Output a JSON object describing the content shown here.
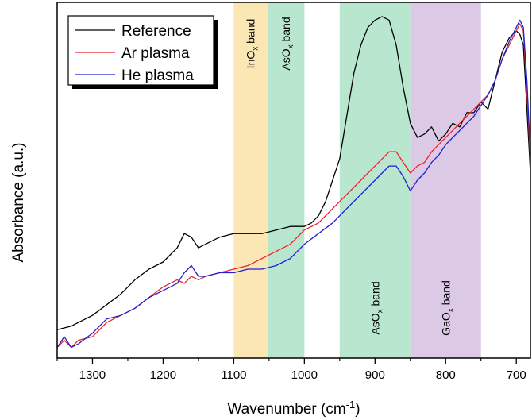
{
  "chart_data": {
    "type": "line",
    "xlabel": "Wavenumber (cm",
    "xlabel_sup": "-1",
    "xlabel_close": ")",
    "ylabel": "Absorbance (a.u.)",
    "xlim": [
      1350,
      680
    ],
    "ylim": [
      0,
      1
    ],
    "x_reversed": true,
    "y_ticks_shown": false,
    "xticks": [
      1300,
      1200,
      1100,
      1000,
      900,
      800,
      700
    ],
    "xtick_labels": [
      "1300",
      "1200",
      "1100",
      "1000",
      "900",
      "800",
      "700"
    ],
    "legend": {
      "placement": "top-left",
      "entries": [
        "Reference",
        "Ar plasma",
        "He plasma"
      ]
    },
    "bands": [
      {
        "from": 1100,
        "to": 1052,
        "color": "#fbe7b4",
        "label_main": "InO",
        "label_sub": "x",
        "label_tail": " band",
        "label_pos": "top"
      },
      {
        "from": 1052,
        "to": 1000,
        "color": "#b8e6cf",
        "label_main": "AsO",
        "label_sub": "x",
        "label_tail": " band",
        "label_pos": "top"
      },
      {
        "from": 950,
        "to": 850,
        "color": "#b8e6cf",
        "label_main": "AsO",
        "label_sub": "x",
        "label_tail": " band",
        "label_pos": "bottom"
      },
      {
        "from": 850,
        "to": 750,
        "color": "#dcc9e6",
        "label_main": "GaO",
        "label_sub": "x",
        "label_tail": " band",
        "label_pos": "bottom"
      }
    ],
    "series": [
      {
        "name": "Reference",
        "color": "#000000",
        "x": [
          1350,
          1330,
          1300,
          1280,
          1260,
          1240,
          1220,
          1200,
          1180,
          1170,
          1160,
          1150,
          1140,
          1120,
          1100,
          1080,
          1060,
          1040,
          1020,
          1000,
          990,
          980,
          970,
          960,
          950,
          940,
          930,
          920,
          910,
          900,
          890,
          880,
          870,
          860,
          850,
          840,
          830,
          820,
          810,
          800,
          790,
          780,
          770,
          760,
          750,
          740,
          730,
          720,
          710,
          700,
          695,
          690,
          685,
          680
        ],
        "y": [
          0.08,
          0.09,
          0.12,
          0.15,
          0.18,
          0.22,
          0.25,
          0.27,
          0.31,
          0.35,
          0.34,
          0.31,
          0.32,
          0.34,
          0.35,
          0.35,
          0.35,
          0.36,
          0.37,
          0.37,
          0.38,
          0.4,
          0.44,
          0.5,
          0.56,
          0.68,
          0.8,
          0.88,
          0.93,
          0.95,
          0.96,
          0.95,
          0.88,
          0.76,
          0.66,
          0.62,
          0.63,
          0.65,
          0.61,
          0.63,
          0.66,
          0.65,
          0.69,
          0.69,
          0.72,
          0.7,
          0.78,
          0.86,
          0.9,
          0.92,
          0.91,
          0.88,
          0.7,
          0.52
        ]
      },
      {
        "name": "Ar plasma",
        "color": "#e8252a",
        "x": [
          1350,
          1340,
          1330,
          1320,
          1300,
          1280,
          1260,
          1240,
          1220,
          1200,
          1180,
          1170,
          1160,
          1150,
          1140,
          1120,
          1100,
          1080,
          1060,
          1040,
          1020,
          1000,
          980,
          960,
          940,
          920,
          900,
          890,
          880,
          870,
          860,
          850,
          840,
          830,
          820,
          810,
          800,
          790,
          780,
          770,
          760,
          750,
          740,
          730,
          720,
          710,
          700,
          695,
          690,
          685,
          680
        ],
        "y": [
          0.03,
          0.05,
          0.03,
          0.05,
          0.06,
          0.1,
          0.12,
          0.14,
          0.17,
          0.2,
          0.22,
          0.21,
          0.23,
          0.22,
          0.23,
          0.24,
          0.25,
          0.26,
          0.28,
          0.3,
          0.32,
          0.36,
          0.38,
          0.42,
          0.46,
          0.5,
          0.54,
          0.56,
          0.58,
          0.58,
          0.55,
          0.52,
          0.54,
          0.55,
          0.58,
          0.6,
          0.62,
          0.64,
          0.66,
          0.68,
          0.7,
          0.72,
          0.74,
          0.78,
          0.84,
          0.88,
          0.92,
          0.94,
          0.92,
          0.75,
          0.55
        ]
      },
      {
        "name": "He plasma",
        "color": "#2020d0",
        "x": [
          1350,
          1340,
          1330,
          1320,
          1300,
          1280,
          1260,
          1240,
          1220,
          1200,
          1180,
          1170,
          1160,
          1150,
          1140,
          1120,
          1100,
          1080,
          1060,
          1040,
          1020,
          1000,
          980,
          960,
          940,
          920,
          900,
          890,
          880,
          870,
          860,
          850,
          840,
          830,
          820,
          810,
          800,
          790,
          780,
          770,
          760,
          750,
          740,
          730,
          720,
          710,
          700,
          695,
          690,
          685,
          680
        ],
        "y": [
          0.03,
          0.06,
          0.03,
          0.04,
          0.07,
          0.11,
          0.12,
          0.14,
          0.17,
          0.19,
          0.21,
          0.24,
          0.26,
          0.23,
          0.23,
          0.24,
          0.24,
          0.25,
          0.25,
          0.26,
          0.28,
          0.32,
          0.35,
          0.38,
          0.42,
          0.46,
          0.5,
          0.52,
          0.54,
          0.54,
          0.51,
          0.47,
          0.5,
          0.52,
          0.55,
          0.57,
          0.6,
          0.62,
          0.64,
          0.66,
          0.68,
          0.71,
          0.74,
          0.78,
          0.84,
          0.89,
          0.93,
          0.95,
          0.93,
          0.78,
          0.57
        ]
      }
    ]
  }
}
